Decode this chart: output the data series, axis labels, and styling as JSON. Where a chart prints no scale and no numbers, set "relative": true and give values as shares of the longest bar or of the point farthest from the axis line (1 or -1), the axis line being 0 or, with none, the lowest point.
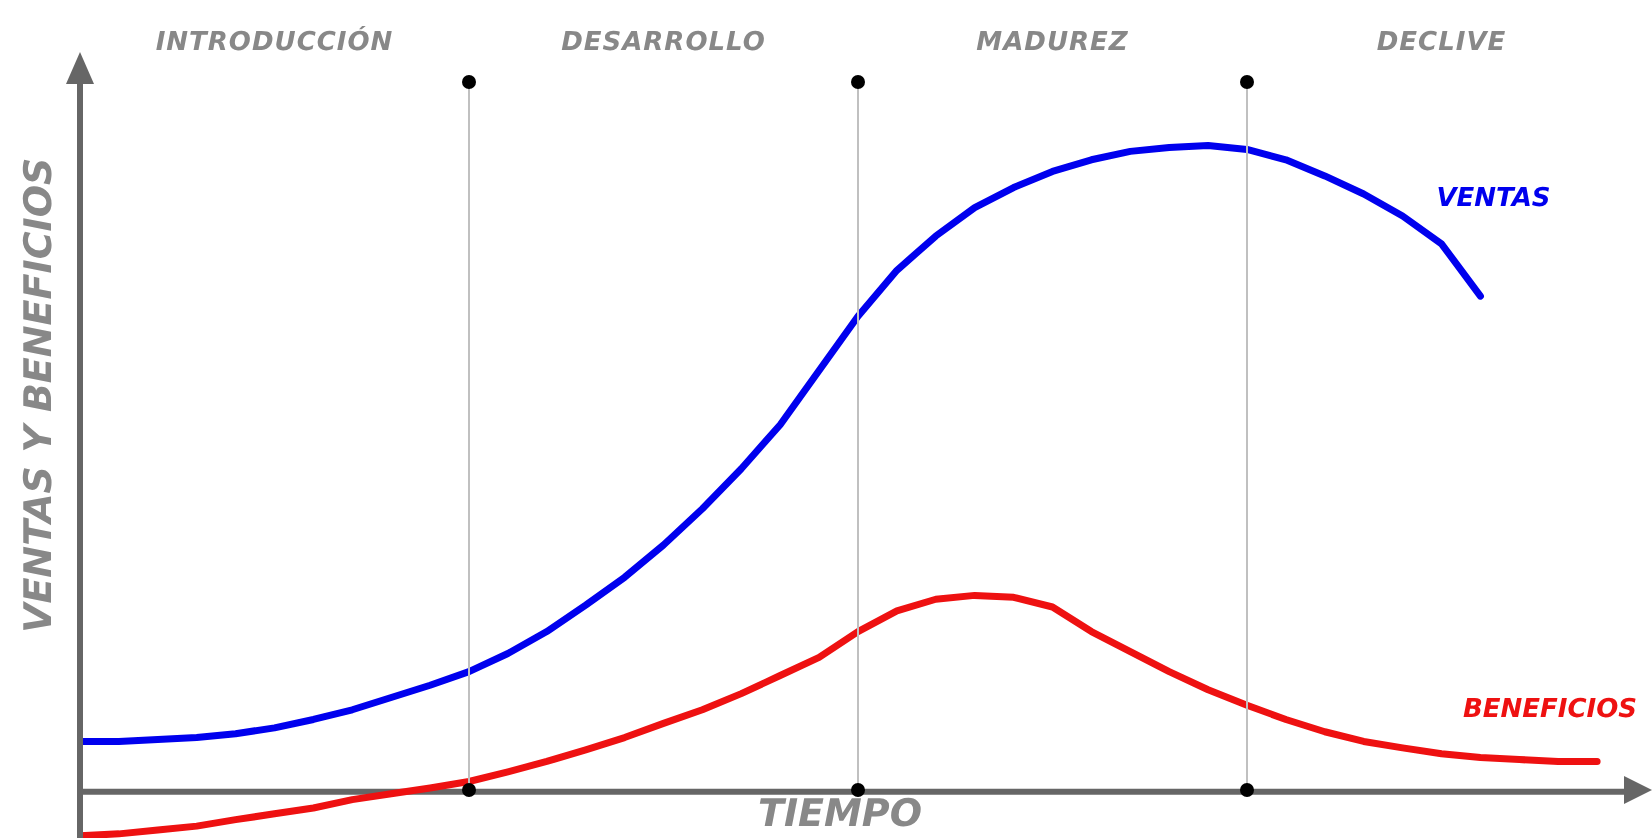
{
  "chart_data": {
    "type": "line",
    "xlabel": "TIEMPO",
    "ylabel": "VENTAS Y BENEFICIOS",
    "relative": true,
    "legend": false,
    "grid": "x",
    "marker": "none",
    "line_style": "solid",
    "categories": [
      null,
      null,
      null,
      null,
      null,
      null,
      null,
      null,
      null,
      null,
      null,
      null,
      null,
      null,
      null,
      null,
      null,
      null,
      null,
      null,
      null,
      null,
      null,
      null,
      null,
      null,
      null,
      null,
      null,
      null,
      null,
      null,
      null,
      null,
      null,
      null,
      null,
      null,
      null,
      null,
      null
    ],
    "series": [
      {
        "name": "VENTAS",
        "color": "#0000ee",
        "values": [
          0.078,
          0.078,
          0.081,
          0.084,
          0.09,
          0.099,
          0.112,
          0.127,
          0.146,
          0.165,
          0.186,
          0.214,
          0.248,
          0.289,
          0.332,
          0.382,
          0.438,
          0.5,
          0.568,
          0.652,
          0.736,
          0.807,
          0.86,
          0.904,
          0.935,
          0.96,
          0.978,
          0.991,
          0.997,
          1,
          0.994,
          0.978,
          0.953,
          0.925,
          0.891,
          0.848,
          0.767,
          null,
          null,
          null,
          null
        ]
      },
      {
        "name": "BENEFICIOS",
        "color": "#ee1111",
        "values": [
          -0.068,
          -0.065,
          -0.059,
          -0.053,
          -0.043,
          -0.034,
          -0.025,
          -0.012,
          -0.003,
          0.006,
          0.016,
          0.031,
          0.047,
          0.065,
          0.084,
          0.106,
          0.127,
          0.152,
          0.18,
          0.208,
          0.248,
          0.28,
          0.298,
          0.304,
          0.301,
          0.286,
          0.248,
          0.217,
          0.186,
          0.158,
          0.134,
          0.112,
          0.093,
          0.078,
          0.068,
          0.059,
          0.053,
          0.05,
          0.047,
          0.047,
          null
        ]
      }
    ],
    "annotations": [
      "INTRODUCCIÓN",
      "DESARROLLO",
      "MADUREZ",
      "DECLIVE"
    ]
  }
}
